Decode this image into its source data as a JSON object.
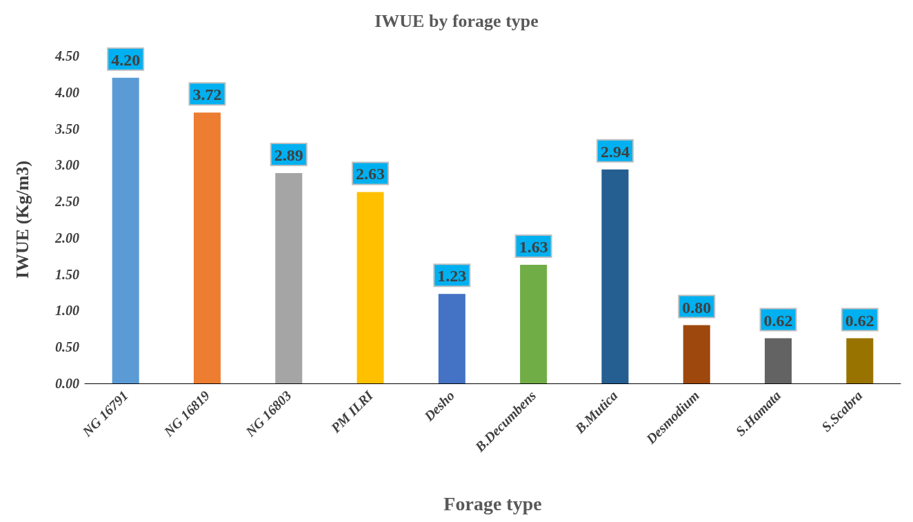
{
  "chart_data": {
    "type": "bar",
    "title": "IWUE by forage type",
    "xlabel": "Forage type",
    "ylabel": "IWUE (Kg/m3)",
    "categories": [
      "NG 16791",
      "NG 16819",
      "NG 16803",
      "PM ILRI",
      "Desho",
      "B.Decumbens",
      "B.Mutica",
      "Desmodium",
      "S.Hamata",
      "S.Scabra"
    ],
    "values": [
      4.2,
      3.72,
      2.89,
      2.63,
      1.23,
      1.63,
      2.94,
      0.8,
      0.62,
      0.62
    ],
    "colors": [
      "#5b9bd5",
      "#ed7d31",
      "#a5a5a5",
      "#ffc000",
      "#4472c4",
      "#70ad47",
      "#255e91",
      "#9e480e",
      "#636363",
      "#997300"
    ],
    "value_labels": [
      "4.20",
      "3.72",
      "2.89",
      "2.63",
      "1.23",
      "1.63",
      "2.94",
      "0.80",
      "0.62",
      "0.62"
    ],
    "ylim": [
      0,
      4.5
    ],
    "yticks": [
      {
        "value": 0,
        "label": "0.00"
      },
      {
        "value": 0.5,
        "label": "0.50"
      },
      {
        "value": 1,
        "label": "1.00"
      },
      {
        "value": 1.5,
        "label": "1.50"
      },
      {
        "value": 2,
        "label": "2.00"
      },
      {
        "value": 2.5,
        "label": "2.50"
      },
      {
        "value": 3,
        "label": "3.00"
      },
      {
        "value": 3.5,
        "label": "3.50"
      },
      {
        "value": 4,
        "label": "4.00"
      },
      {
        "value": 4.5,
        "label": "4.50"
      }
    ],
    "grid": false
  }
}
